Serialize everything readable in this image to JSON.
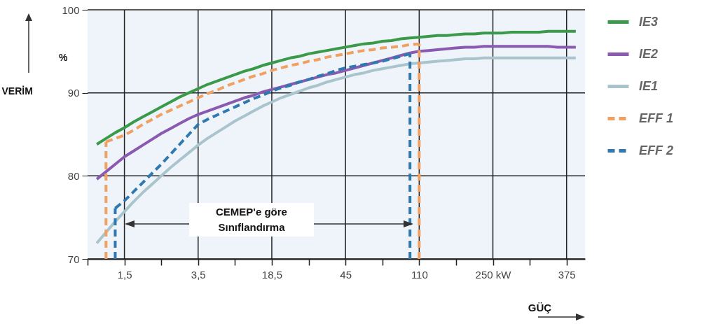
{
  "chart_data": {
    "type": "line",
    "xlabel": "GÜÇ",
    "ylabel": "VERİM",
    "annotations": [
      "%",
      "CEMEP'e göre Sınıflandırma"
    ],
    "categories": [
      null,
      null,
      null,
      null,
      "1,5",
      null,
      null,
      null,
      null,
      null,
      null,
      null,
      "3,5",
      null,
      null,
      null,
      null,
      null,
      null,
      null,
      "18,5",
      null,
      null,
      null,
      null,
      null,
      null,
      null,
      "45",
      null,
      null,
      null,
      null,
      null,
      null,
      null,
      "110",
      null,
      null,
      null,
      null,
      null,
      null,
      null,
      "250 kW",
      null,
      null,
      null,
      null,
      null,
      null,
      null,
      "375",
      null,
      null
    ],
    "ylim": [
      70,
      100
    ],
    "yticks": [
      70,
      80,
      90,
      100
    ],
    "grid": true,
    "legend": "right",
    "series": [
      {
        "name": "IE3",
        "color": "#3a9a4a",
        "line_style": "solid",
        "values": [
          null,
          83.8,
          84.5,
          85.2,
          85.8,
          86.5,
          87.1,
          87.7,
          88.3,
          88.9,
          89.5,
          90.0,
          90.5,
          91.0,
          91.4,
          91.8,
          92.2,
          92.6,
          92.9,
          93.3,
          93.6,
          93.9,
          94.2,
          94.4,
          94.7,
          94.9,
          95.1,
          95.3,
          95.5,
          95.7,
          95.9,
          96.0,
          96.2,
          96.3,
          96.5,
          96.6,
          96.7,
          96.8,
          96.9,
          96.9,
          97.0,
          97.1,
          97.1,
          97.2,
          97.2,
          97.2,
          97.3,
          97.3,
          97.3,
          97.3,
          97.4,
          97.4,
          97.4,
          97.4,
          null
        ]
      },
      {
        "name": "IE2",
        "color": "#8a5ab0",
        "line_style": "solid",
        "values": [
          null,
          79.6,
          80.5,
          81.4,
          82.3,
          83.0,
          83.7,
          84.4,
          85.1,
          85.7,
          86.3,
          86.9,
          87.4,
          87.8,
          88.2,
          88.6,
          89.0,
          89.4,
          89.7,
          90.1,
          90.4,
          90.7,
          91.0,
          91.3,
          91.6,
          91.9,
          92.2,
          92.4,
          92.7,
          93.0,
          93.3,
          93.6,
          93.9,
          94.2,
          94.5,
          94.8,
          95.0,
          95.1,
          95.2,
          95.3,
          95.4,
          95.5,
          95.5,
          95.6,
          95.6,
          95.6,
          95.6,
          95.6,
          95.6,
          95.6,
          95.6,
          95.5,
          95.5,
          95.5,
          null
        ]
      },
      {
        "name": "IE1",
        "color": "#a9c4cc",
        "line_style": "solid",
        "values": [
          null,
          71.9,
          73.2,
          74.5,
          75.7,
          76.9,
          78.0,
          79.0,
          80.0,
          81.0,
          81.9,
          82.8,
          83.7,
          84.5,
          85.2,
          85.9,
          86.6,
          87.2,
          87.8,
          88.4,
          88.9,
          89.4,
          89.8,
          90.2,
          90.6,
          90.9,
          91.3,
          91.6,
          91.9,
          92.2,
          92.4,
          92.7,
          92.9,
          93.1,
          93.3,
          93.5,
          93.6,
          93.7,
          93.8,
          93.9,
          94.0,
          94.1,
          94.1,
          94.2,
          94.2,
          94.2,
          94.2,
          94.2,
          94.2,
          94.2,
          94.2,
          94.2,
          94.2,
          94.2,
          null
        ]
      },
      {
        "name": "EFF 1",
        "color": "#f0a060",
        "line_style": "dashed",
        "values": [
          null,
          null,
          84.1,
          84.5,
          84.9,
          85.5,
          86.2,
          86.8,
          87.4,
          87.9,
          88.4,
          88.9,
          89.4,
          89.9,
          90.3,
          90.8,
          91.2,
          91.6,
          92.0,
          92.3,
          92.7,
          93.0,
          93.3,
          93.5,
          93.8,
          94.0,
          94.3,
          94.5,
          94.7,
          94.9,
          95.1,
          95.2,
          95.4,
          95.5,
          95.6,
          95.8,
          95.9,
          null,
          null,
          null,
          null,
          null,
          null,
          null,
          null,
          null,
          null,
          null,
          null,
          null,
          null,
          null,
          null,
          null,
          null
        ]
      },
      {
        "name": "EFF 2",
        "color": "#2f78b0",
        "line_style": "dashed",
        "values": [
          null,
          null,
          null,
          76.1,
          77.0,
          78.1,
          79.2,
          80.3,
          81.4,
          82.6,
          83.8,
          85.0,
          86.2,
          86.8,
          87.3,
          87.8,
          88.3,
          88.8,
          89.3,
          89.7,
          90.2,
          90.6,
          90.9,
          91.3,
          91.6,
          92.0,
          92.3,
          92.7,
          93.0,
          93.2,
          93.4,
          93.6,
          93.8,
          94.1,
          94.4,
          94.7,
          null,
          null,
          null,
          null,
          null,
          null,
          null,
          null,
          null,
          null,
          null,
          null,
          null,
          null,
          null,
          null,
          null,
          null,
          null
        ]
      }
    ]
  }
}
